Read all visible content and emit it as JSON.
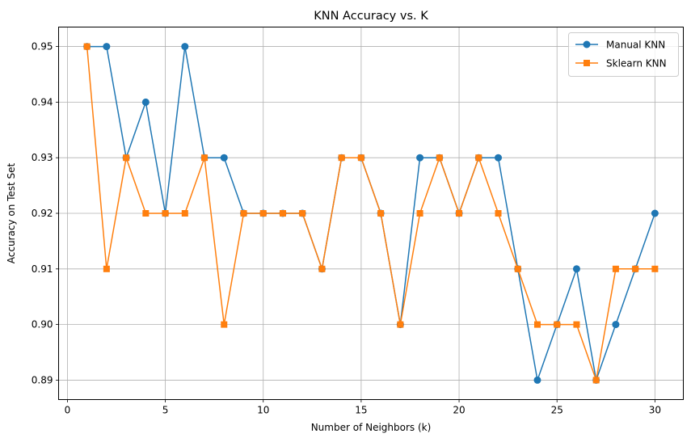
{
  "chart_data": {
    "type": "line",
    "title": "KNN Accuracy vs. K",
    "xlabel": "Number of Neighbors (k)",
    "ylabel": "Accuracy on Test Set",
    "xlim": [
      -0.45,
      31.45
    ],
    "ylim": [
      0.8865,
      0.9535
    ],
    "xticks": [
      0,
      5,
      10,
      15,
      20,
      25,
      30
    ],
    "xtick_labels": [
      "0",
      "5",
      "10",
      "15",
      "20",
      "25",
      "30"
    ],
    "yticks": [
      0.89,
      0.9,
      0.91,
      0.92,
      0.93,
      0.94,
      0.95
    ],
    "ytick_labels": [
      "0.89",
      "0.90",
      "0.91",
      "0.92",
      "0.93",
      "0.94",
      "0.95"
    ],
    "grid": true,
    "legend_position": "top-right",
    "x": [
      1,
      2,
      3,
      4,
      5,
      6,
      7,
      8,
      9,
      10,
      11,
      12,
      13,
      14,
      15,
      16,
      17,
      18,
      19,
      20,
      21,
      22,
      23,
      24,
      25,
      26,
      27,
      28,
      29,
      30
    ],
    "series": [
      {
        "name": "Manual KNN",
        "color": "#1f77b4",
        "marker": "circle",
        "values": [
          0.95,
          0.95,
          0.93,
          0.94,
          0.92,
          0.95,
          0.93,
          0.93,
          0.92,
          0.92,
          0.92,
          0.92,
          0.91,
          0.93,
          0.93,
          0.92,
          0.9,
          0.93,
          0.93,
          0.92,
          0.93,
          0.93,
          0.91,
          0.89,
          0.9,
          0.91,
          0.89,
          0.9,
          0.91,
          0.92
        ]
      },
      {
        "name": "Sklearn KNN",
        "color": "#ff7f0e",
        "marker": "square",
        "values": [
          0.95,
          0.91,
          0.93,
          0.92,
          0.92,
          0.92,
          0.93,
          0.9,
          0.92,
          0.92,
          0.92,
          0.92,
          0.91,
          0.93,
          0.93,
          0.92,
          0.9,
          0.92,
          0.93,
          0.92,
          0.93,
          0.92,
          0.91,
          0.9,
          0.9,
          0.9,
          0.89,
          0.91,
          0.91,
          0.91
        ]
      }
    ]
  }
}
